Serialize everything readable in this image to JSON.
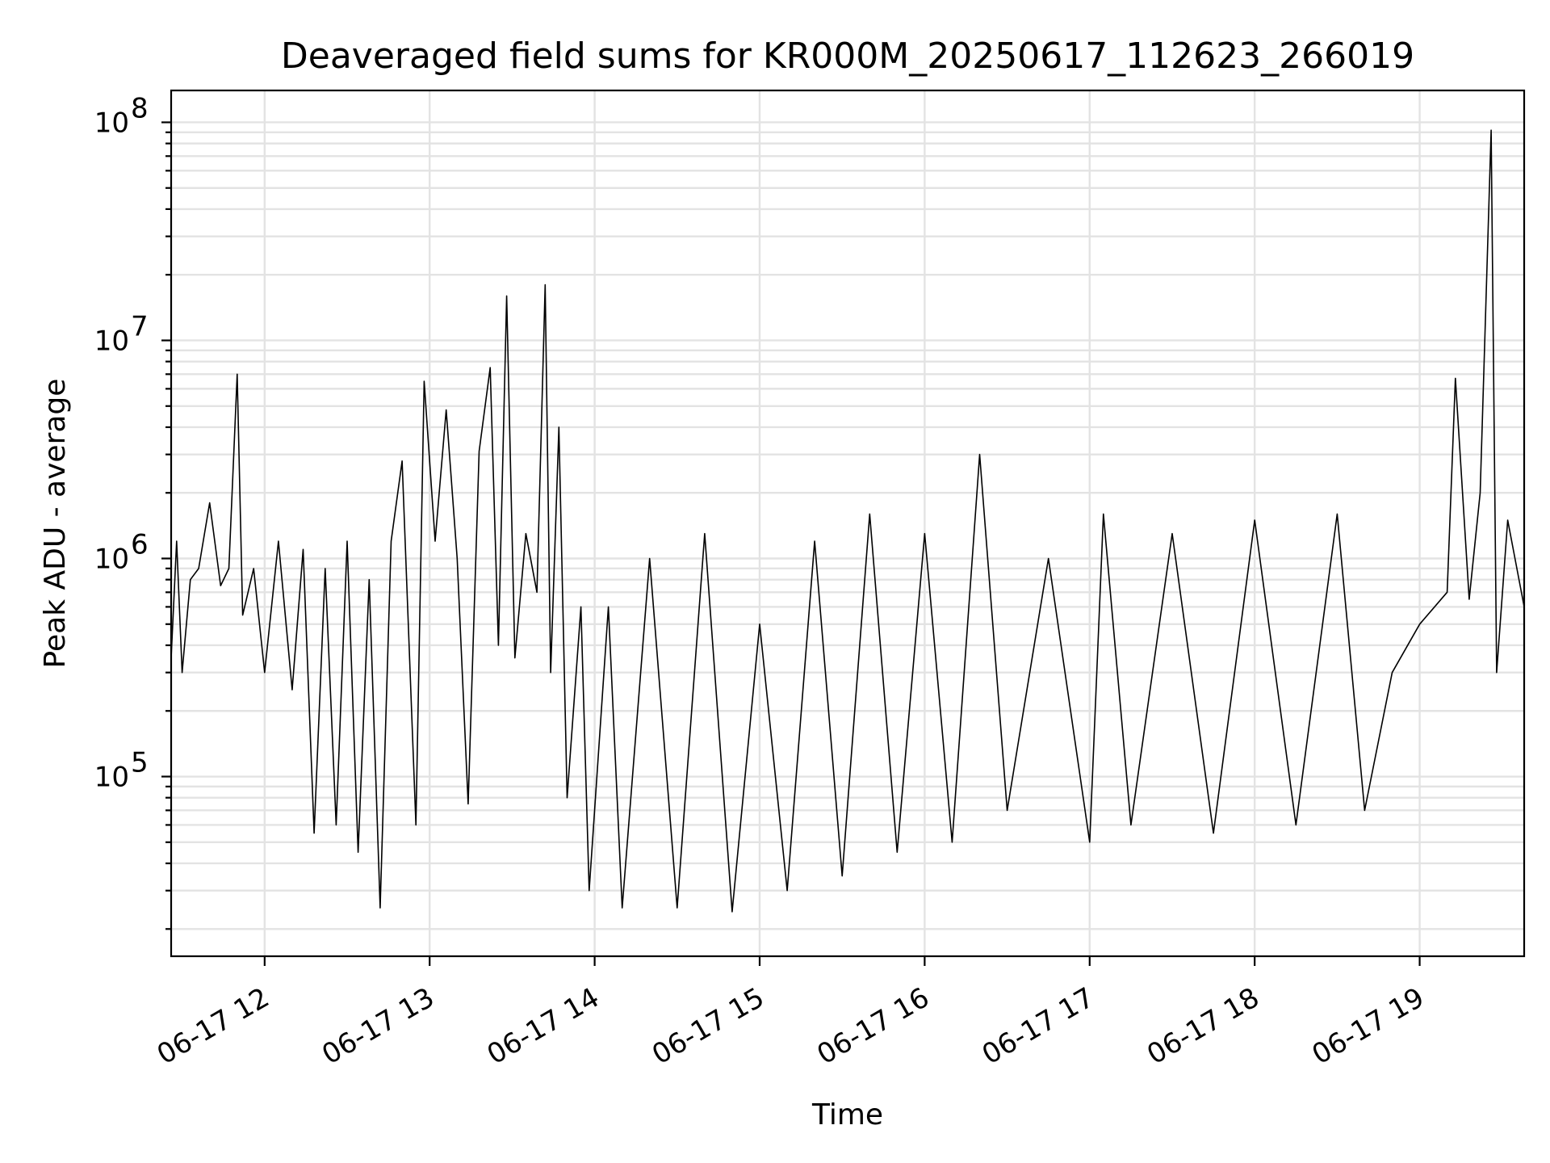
{
  "chart_data": {
    "type": "line",
    "title": "Deaveraged field sums for KR000M_20250617_112623_266019",
    "xlabel": "Time",
    "ylabel": "Peak ADU - average",
    "yscale": "log",
    "ylim": [
      15000,
      140000000
    ],
    "xlim": [
      "2025-06-17 11:26",
      "2025-06-17 19:38"
    ],
    "grid": true,
    "grid_minor": true,
    "line_color": "#000000",
    "x_ticks": [
      {
        "t": "2025-06-17 12:00",
        "label": "06-17 12"
      },
      {
        "t": "2025-06-17 13:00",
        "label": "06-17 13"
      },
      {
        "t": "2025-06-17 14:00",
        "label": "06-17 14"
      },
      {
        "t": "2025-06-17 15:00",
        "label": "06-17 15"
      },
      {
        "t": "2025-06-17 16:00",
        "label": "06-17 16"
      },
      {
        "t": "2025-06-17 17:00",
        "label": "06-17 17"
      },
      {
        "t": "2025-06-17 18:00",
        "label": "06-17 18"
      },
      {
        "t": "2025-06-17 19:00",
        "label": "06-17 19"
      }
    ],
    "y_ticks": [
      {
        "value": 100000,
        "base": "10",
        "exp": "5"
      },
      {
        "value": 1000000,
        "base": "10",
        "exp": "6"
      },
      {
        "value": 10000000,
        "base": "10",
        "exp": "7"
      },
      {
        "value": 100000000,
        "base": "10",
        "exp": "8"
      }
    ],
    "series": [
      {
        "points": [
          [
            "2025-06-17 11:26",
            350000
          ],
          [
            "2025-06-17 11:28",
            1200000
          ],
          [
            "2025-06-17 11:30",
            300000
          ],
          [
            "2025-06-17 11:33",
            800000
          ],
          [
            "2025-06-17 11:36",
            900000
          ],
          [
            "2025-06-17 11:40",
            1800000
          ],
          [
            "2025-06-17 11:44",
            750000
          ],
          [
            "2025-06-17 11:47",
            900000
          ],
          [
            "2025-06-17 11:50",
            7000000
          ],
          [
            "2025-06-17 11:52",
            550000
          ],
          [
            "2025-06-17 11:56",
            900000
          ],
          [
            "2025-06-17 12:00",
            300000
          ],
          [
            "2025-06-17 12:05",
            1200000
          ],
          [
            "2025-06-17 12:10",
            250000
          ],
          [
            "2025-06-17 12:14",
            1100000
          ],
          [
            "2025-06-17 12:18",
            55000
          ],
          [
            "2025-06-17 12:22",
            900000
          ],
          [
            "2025-06-17 12:26",
            60000
          ],
          [
            "2025-06-17 12:30",
            1200000
          ],
          [
            "2025-06-17 12:34",
            45000
          ],
          [
            "2025-06-17 12:38",
            800000
          ],
          [
            "2025-06-17 12:42",
            25000
          ],
          [
            "2025-06-17 12:46",
            1200000
          ],
          [
            "2025-06-17 12:50",
            2800000
          ],
          [
            "2025-06-17 12:55",
            60000
          ],
          [
            "2025-06-17 12:58",
            6500000
          ],
          [
            "2025-06-17 13:02",
            1200000
          ],
          [
            "2025-06-17 13:06",
            4800000
          ],
          [
            "2025-06-17 13:10",
            1000000
          ],
          [
            "2025-06-17 13:14",
            75000
          ],
          [
            "2025-06-17 13:18",
            3100000
          ],
          [
            "2025-06-17 13:22",
            7500000
          ],
          [
            "2025-06-17 13:25",
            400000
          ],
          [
            "2025-06-17 13:28",
            16000000
          ],
          [
            "2025-06-17 13:31",
            350000
          ],
          [
            "2025-06-17 13:35",
            1300000
          ],
          [
            "2025-06-17 13:39",
            700000
          ],
          [
            "2025-06-17 13:42",
            18000000
          ],
          [
            "2025-06-17 13:44",
            300000
          ],
          [
            "2025-06-17 13:47",
            4000000
          ],
          [
            "2025-06-17 13:50",
            80000
          ],
          [
            "2025-06-17 13:55",
            600000
          ],
          [
            "2025-06-17 13:58",
            30000
          ],
          [
            "2025-06-17 14:05",
            600000
          ],
          [
            "2025-06-17 14:10",
            25000
          ],
          [
            "2025-06-17 14:20",
            1000000
          ],
          [
            "2025-06-17 14:30",
            25000
          ],
          [
            "2025-06-17 14:40",
            1300000
          ],
          [
            "2025-06-17 14:50",
            24000
          ],
          [
            "2025-06-17 15:00",
            500000
          ],
          [
            "2025-06-17 15:10",
            30000
          ],
          [
            "2025-06-17 15:20",
            1200000
          ],
          [
            "2025-06-17 15:30",
            35000
          ],
          [
            "2025-06-17 15:40",
            1600000
          ],
          [
            "2025-06-17 15:50",
            45000
          ],
          [
            "2025-06-17 16:00",
            1300000
          ],
          [
            "2025-06-17 16:10",
            50000
          ],
          [
            "2025-06-17 16:20",
            3000000
          ],
          [
            "2025-06-17 16:30",
            70000
          ],
          [
            "2025-06-17 16:45",
            1000000
          ],
          [
            "2025-06-17 17:00",
            50000
          ],
          [
            "2025-06-17 17:05",
            1600000
          ],
          [
            "2025-06-17 17:15",
            60000
          ],
          [
            "2025-06-17 17:30",
            1300000
          ],
          [
            "2025-06-17 17:45",
            55000
          ],
          [
            "2025-06-17 18:00",
            1500000
          ],
          [
            "2025-06-17 18:15",
            60000
          ],
          [
            "2025-06-17 18:30",
            1600000
          ],
          [
            "2025-06-17 18:40",
            70000
          ],
          [
            "2025-06-17 18:50",
            300000
          ],
          [
            "2025-06-17 19:00",
            500000
          ],
          [
            "2025-06-17 19:10",
            700000
          ],
          [
            "2025-06-17 19:13",
            6700000
          ],
          [
            "2025-06-17 19:18",
            650000
          ],
          [
            "2025-06-17 19:22",
            2000000
          ],
          [
            "2025-06-17 19:26",
            92000000
          ],
          [
            "2025-06-17 19:28",
            300000
          ],
          [
            "2025-06-17 19:32",
            1500000
          ],
          [
            "2025-06-17 19:38",
            600000
          ]
        ]
      }
    ]
  }
}
